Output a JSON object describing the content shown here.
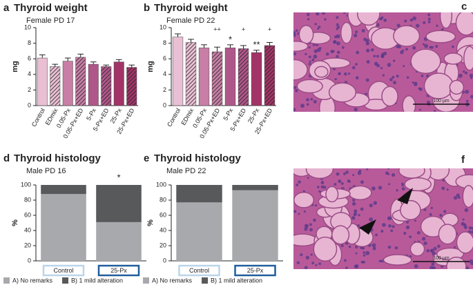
{
  "chart_data": [
    {
      "type": "bar",
      "letter": "a",
      "title": "Thyroid weight",
      "subtitle": "Female PD 17",
      "ylabel": "mg",
      "categories": [
        "Control",
        "EDmix",
        "0.05-Px",
        "0.05-Px+ED",
        "5-Px",
        "5-Px+ED",
        "25-Px",
        "25-Px+ED"
      ],
      "values": [
        6.1,
        5.0,
        5.7,
        6.2,
        5.3,
        5.0,
        5.6,
        4.9
      ],
      "errors": [
        0.4,
        0.3,
        0.4,
        0.4,
        0.3,
        0.2,
        0.3,
        0.3
      ],
      "colors": [
        "#e9bfd3",
        "#e9bfd3",
        "#c87ea6",
        "#c87ea6",
        "#b0578a",
        "#b0578a",
        "#a23468",
        "#a23468"
      ],
      "hatched": [
        false,
        true,
        false,
        true,
        false,
        true,
        false,
        true
      ],
      "ylim": [
        0,
        10
      ],
      "yticks": [
        0,
        2,
        4,
        6,
        8,
        10
      ]
    },
    {
      "type": "bar",
      "letter": "b",
      "title": "Thyroid weight",
      "subtitle": "Female PD 22",
      "ylabel": "mg",
      "categories": [
        "Control",
        "EDmix",
        "0.05-Px",
        "0.05-Px+ED",
        "5-Px",
        "5-Px+ED",
        "25-Px",
        "25-Px+ED"
      ],
      "values": [
        8.8,
        8.1,
        7.4,
        6.9,
        7.4,
        7.3,
        6.8,
        7.7
      ],
      "errors": [
        0.4,
        0.4,
        0.4,
        0.6,
        0.4,
        0.4,
        0.3,
        0.4
      ],
      "colors": [
        "#e9bfd3",
        "#e9bfd3",
        "#c87ea6",
        "#c87ea6",
        "#b0578a",
        "#b0578a",
        "#a23468",
        "#a23468"
      ],
      "hatched": [
        false,
        true,
        false,
        true,
        false,
        true,
        false,
        true
      ],
      "annotations": [
        null,
        null,
        null,
        "++",
        null,
        "+",
        null,
        "+"
      ],
      "significance": [
        null,
        null,
        null,
        null,
        "*",
        null,
        "**",
        null
      ],
      "ylim": [
        0,
        10
      ],
      "yticks": [
        0,
        2,
        4,
        6,
        8,
        10
      ]
    },
    {
      "type": "stacked-bar",
      "letter": "d",
      "title": "Thyroid histology",
      "subtitle": "Male PD 16",
      "ylabel": "%",
      "categories": [
        "Control",
        "25-Px"
      ],
      "category_box_colors": [
        "#b9d5ea",
        "#1f5d9c"
      ],
      "series": [
        {
          "name": "A) No remarks",
          "color": "#a7a9ac",
          "values": [
            88,
            51
          ]
        },
        {
          "name": "B) 1 mild alteration",
          "color": "#58595b",
          "values": [
            12,
            49
          ]
        }
      ],
      "significance": [
        null,
        "*"
      ],
      "ylim": [
        0,
        100
      ],
      "yticks": [
        0,
        20,
        40,
        60,
        80,
        100
      ]
    },
    {
      "type": "stacked-bar",
      "letter": "e",
      "title": "Thyroid histology",
      "subtitle": "Male PD 22",
      "ylabel": "%",
      "categories": [
        "Control",
        "25-Px"
      ],
      "category_box_colors": [
        "#b9d5ea",
        "#1f5d9c"
      ],
      "series": [
        {
          "name": "A) No remarks",
          "color": "#a7a9ac",
          "values": [
            77,
            93
          ]
        },
        {
          "name": "B) 1 mild alteration",
          "color": "#58595b",
          "values": [
            23,
            7
          ]
        }
      ],
      "ylim": [
        0,
        100
      ],
      "yticks": [
        0,
        20,
        40,
        60,
        80,
        100
      ]
    }
  ],
  "images": [
    {
      "letter": "c",
      "scale_label": "100 µm"
    },
    {
      "letter": "f",
      "scale_label": "100 µm"
    }
  ]
}
